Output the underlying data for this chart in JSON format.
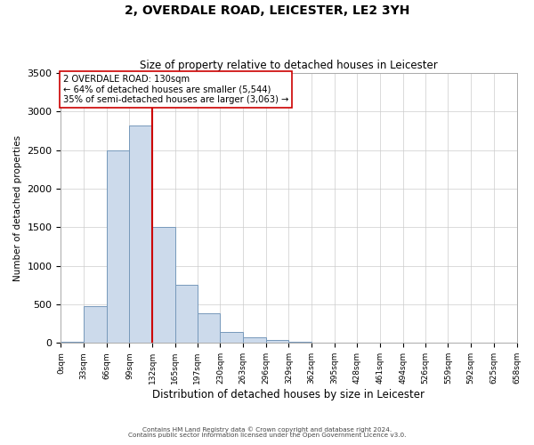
{
  "title": "2, OVERDALE ROAD, LEICESTER, LE2 3YH",
  "subtitle": "Size of property relative to detached houses in Leicester",
  "xlabel": "Distribution of detached houses by size in Leicester",
  "ylabel": "Number of detached properties",
  "bar_values": [
    20,
    480,
    2500,
    2820,
    1500,
    750,
    380,
    140,
    75,
    40,
    15,
    5,
    0,
    0,
    0,
    0,
    0,
    0,
    0,
    0
  ],
  "bin_labels": [
    "0sqm",
    "33sqm",
    "66sqm",
    "99sqm",
    "132sqm",
    "165sqm",
    "197sqm",
    "230sqm",
    "263sqm",
    "296sqm",
    "329sqm",
    "362sqm",
    "395sqm",
    "428sqm",
    "461sqm",
    "494sqm",
    "526sqm",
    "559sqm",
    "592sqm",
    "625sqm",
    "658sqm"
  ],
  "bar_color": "#ccdaeb",
  "bar_edge_color": "#7799bb",
  "ylim": [
    0,
    3500
  ],
  "yticks": [
    0,
    500,
    1000,
    1500,
    2000,
    2500,
    3000,
    3500
  ],
  "property_line_x": 132,
  "property_line_color": "#cc0000",
  "annotation_text": "2 OVERDALE ROAD: 130sqm\n← 64% of detached houses are smaller (5,544)\n35% of semi-detached houses are larger (3,063) →",
  "annotation_box_color": "#ffffff",
  "annotation_box_edge_color": "#cc0000",
  "footer_line1": "Contains HM Land Registry data © Crown copyright and database right 2024.",
  "footer_line2": "Contains public sector information licensed under the Open Government Licence v3.0.",
  "background_color": "#ffffff",
  "plot_background_color": "#ffffff",
  "grid_color": "#cccccc",
  "bin_edges": [
    0,
    33,
    66,
    99,
    132,
    165,
    197,
    230,
    263,
    296,
    329,
    362,
    395,
    428,
    461,
    494,
    526,
    559,
    592,
    625,
    658
  ]
}
